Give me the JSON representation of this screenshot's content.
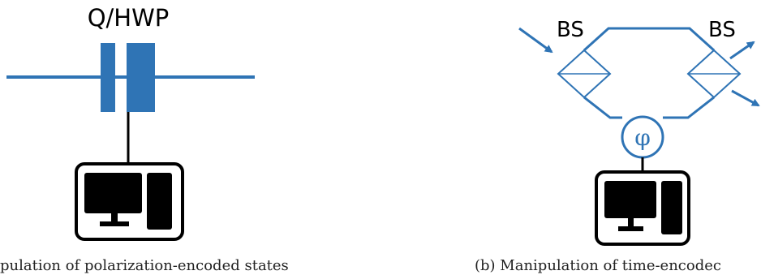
{
  "panel_a": {
    "waveplate_label": "Q/HWP",
    "caption": "pulation of polarization-encoded states"
  },
  "panel_b": {
    "beamsplitter_left_label": "BS",
    "beamsplitter_right_label": "BS",
    "phase_symbol": "φ",
    "caption": "(b) Manipulation of time-encodec"
  },
  "colors": {
    "optics_blue": "#2f74b5",
    "computer_black": "#000000"
  },
  "icons": {
    "computer": "computer-icon",
    "waveplate": "waveplate-icon",
    "beamsplitter": "beamsplitter-icon",
    "phase_shifter": "phase-shifter-icon"
  }
}
